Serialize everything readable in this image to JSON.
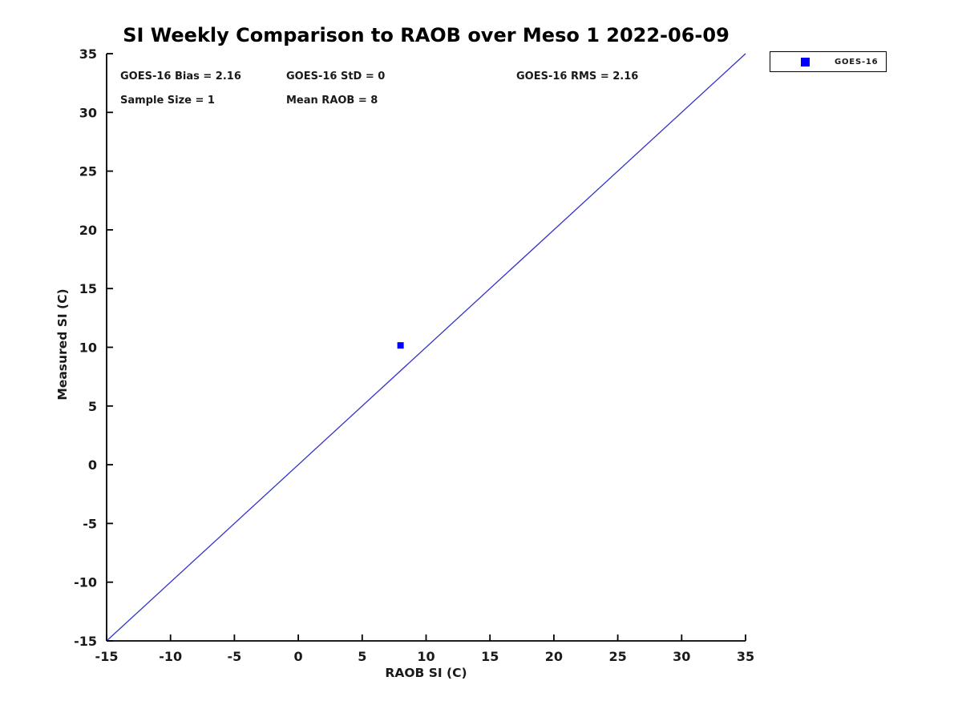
{
  "chart_data": {
    "type": "scatter",
    "title": "SI Weekly Comparison to RAOB over Meso 1 2022-06-09",
    "xlabel": "RAOB SI (C)",
    "ylabel": "Measured SI (C)",
    "xlim": [
      -15,
      35
    ],
    "ylim": [
      -15,
      35
    ],
    "xticks": [
      -15,
      -10,
      -5,
      0,
      5,
      10,
      15,
      20,
      25,
      30,
      35
    ],
    "yticks": [
      -15,
      -10,
      -5,
      0,
      5,
      10,
      15,
      20,
      25,
      30,
      35
    ],
    "grid": false,
    "legend_position": "top-right-outside",
    "series": [
      {
        "name": "GOES-16",
        "marker": "square",
        "color": "#0000ff",
        "points": [
          {
            "x": 8,
            "y": 10.16
          }
        ]
      }
    ],
    "reference_line": {
      "x1": -15,
      "y1": -15,
      "x2": 35,
      "y2": 35,
      "color": "#3333cc"
    },
    "annotations": [
      "GOES-16 Bias = 2.16",
      "GOES-16 StD = 0",
      "GOES-16 RMS = 2.16",
      "Sample Size = 1",
      "Mean RAOB = 8"
    ]
  },
  "colors": {
    "background": "#ffffff",
    "axis": "#000000",
    "text": "#1a1a1a",
    "marker": "#0000ff",
    "identity_line": "#3333cc"
  }
}
